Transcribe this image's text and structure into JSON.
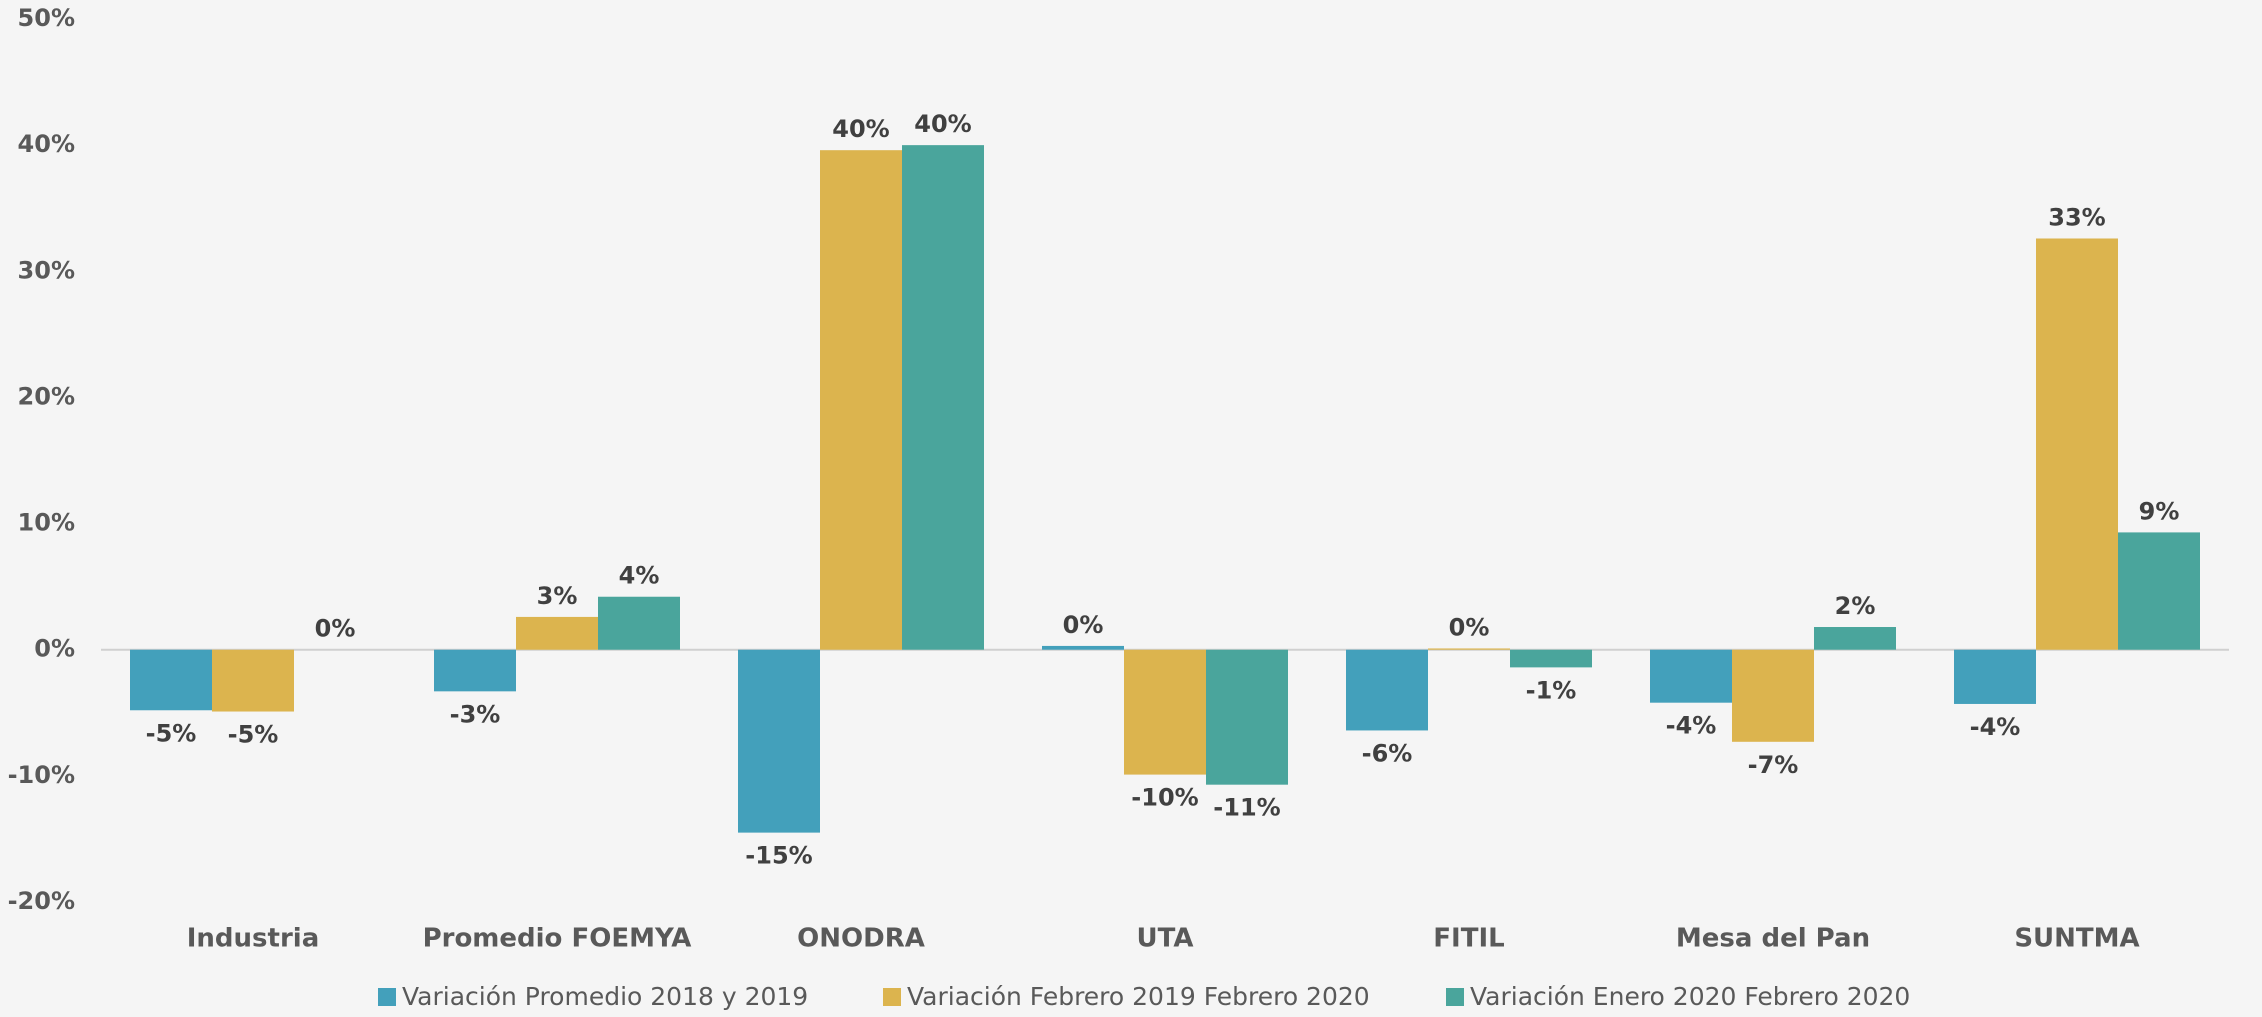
{
  "chart_data": {
    "type": "bar",
    "categories": [
      "Industria",
      "Promedio FOEMYA",
      "ONODRA",
      "UTA",
      "FITIL",
      "Mesa del Pan",
      "SUNTMA"
    ],
    "series": [
      {
        "name": "Variación Promedio 2018 y 2019",
        "color": "#43a0bb",
        "values": [
          -4.8,
          -3.3,
          -14.5,
          0.3,
          -6.4,
          -4.2,
          -4.3
        ],
        "value_labels": [
          "-5%",
          "-3%",
          "-15%",
          "0%",
          "-6%",
          "-4%",
          "-4%"
        ]
      },
      {
        "name": "Variación Febrero 2019 Febrero 2020",
        "color": "#dcb44e",
        "values": [
          -4.9,
          2.6,
          39.6,
          -9.9,
          0.1,
          -7.3,
          32.6
        ],
        "value_labels": [
          "-5%",
          "3%",
          "40%",
          "-10%",
          "0%",
          "-7%",
          "33%"
        ]
      },
      {
        "name": "Variación Enero 2020  Febrero 2020",
        "color": "#4aa59c",
        "values": [
          0,
          4.2,
          40.0,
          -10.7,
          -1.4,
          1.8,
          9.3
        ],
        "value_labels": [
          "0%",
          "4%",
          "40%",
          "-11%",
          "-1%",
          "2%",
          "9%"
        ]
      }
    ],
    "ylim": [
      -20,
      50
    ],
    "yticks": [
      {
        "value": -20,
        "label": "-20%"
      },
      {
        "value": -10,
        "label": "-10%"
      },
      {
        "value": 0,
        "label": "0%"
      },
      {
        "value": 10,
        "label": "10%"
      },
      {
        "value": 20,
        "label": "20%"
      },
      {
        "value": 30,
        "label": "30%"
      },
      {
        "value": 40,
        "label": "40%"
      },
      {
        "value": 50,
        "label": "50%"
      }
    ],
    "legend": "bottom"
  }
}
